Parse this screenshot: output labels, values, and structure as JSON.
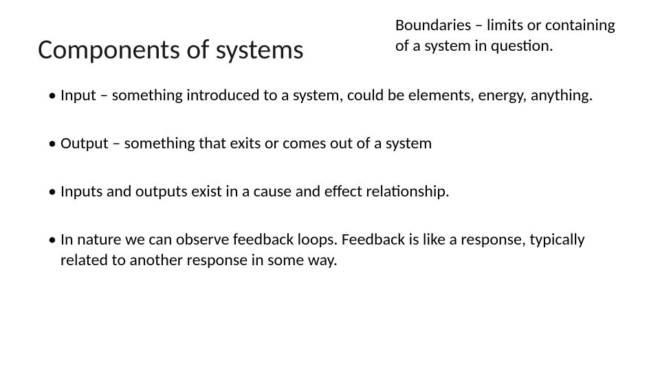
{
  "slide": {
    "title": "Components of systems",
    "subtitle": "Boundaries – limits or containing of a system in question.",
    "bullets": [
      " Input – something introduced to a system, could be elements, energy, anything.",
      "Output – something that exits or comes out of a system",
      "Inputs and outputs exist in a cause and effect relationship.",
      "In nature we can observe feedback loops. Feedback is like a response, typically related to another response in some way."
    ]
  },
  "styling": {
    "background_color": "#ffffff",
    "text_color": "#000000",
    "title_fontsize": 40,
    "subtitle_fontsize": 24,
    "bullet_fontsize": 24,
    "font_family": "Calibri"
  }
}
